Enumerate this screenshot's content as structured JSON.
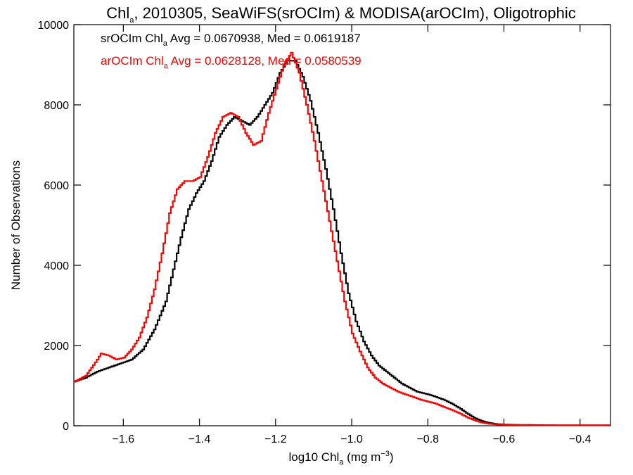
{
  "chart_data": {
    "type": "line",
    "title": {
      "pre": "Chl",
      "sub": "a",
      "post": ", 2010305, SeaWiFS(srOCIm) & MODISA(arOCIm), Oligotrophic"
    },
    "xlabel": {
      "pre": "log10 Chl",
      "sub": "a",
      "post": " (mg m",
      "sup": "−3",
      "end": ")"
    },
    "ylabel": "Number of Observations",
    "xlim": [
      -1.73,
      -0.32
    ],
    "ylim": [
      0,
      10000
    ],
    "xticks": [
      "−1.6",
      "−1.4",
      "−1.2",
      "−1.0",
      "−0.8",
      "−0.6",
      "−0.4"
    ],
    "xtick_values": [
      -1.6,
      -1.4,
      -1.2,
      -1.0,
      -0.8,
      -0.6,
      -0.4
    ],
    "yticks": [
      "0",
      "2000",
      "4000",
      "6000",
      "8000",
      "10000"
    ],
    "ytick_values": [
      0,
      2000,
      4000,
      6000,
      8000,
      10000
    ],
    "grid": false,
    "series": [
      {
        "color": "#000000",
        "stats": {
          "pre": "srOCIm Chl",
          "sub": "a",
          "post": " Avg = 0.0670938, Med = 0.0619187"
        },
        "x": [
          -1.73,
          -1.7,
          -1.67,
          -1.64,
          -1.61,
          -1.58,
          -1.55,
          -1.52,
          -1.49,
          -1.47,
          -1.45,
          -1.43,
          -1.41,
          -1.39,
          -1.37,
          -1.35,
          -1.33,
          -1.31,
          -1.29,
          -1.27,
          -1.25,
          -1.23,
          -1.21,
          -1.19,
          -1.17,
          -1.15,
          -1.13,
          -1.11,
          -1.09,
          -1.07,
          -1.05,
          -1.03,
          -1.01,
          -0.99,
          -0.97,
          -0.95,
          -0.93,
          -0.91,
          -0.89,
          -0.87,
          -0.85,
          -0.83,
          -0.8,
          -0.78,
          -0.76,
          -0.74,
          -0.72,
          -0.7,
          -0.68,
          -0.66,
          -0.64,
          -0.62,
          -0.6,
          -0.58,
          -0.55,
          -0.5,
          -0.45,
          -0.4,
          -0.35,
          -0.32
        ],
        "y": [
          1100,
          1200,
          1350,
          1450,
          1550,
          1650,
          1900,
          2400,
          3100,
          3900,
          4700,
          5400,
          5800,
          6100,
          6600,
          7200,
          7500,
          7700,
          7600,
          7500,
          7700,
          8000,
          8300,
          8800,
          9100,
          9100,
          8700,
          8100,
          7300,
          6400,
          5400,
          4300,
          3300,
          2600,
          2100,
          1750,
          1500,
          1350,
          1200,
          1050,
          950,
          850,
          780,
          720,
          650,
          560,
          450,
          320,
          200,
          120,
          70,
          40,
          30,
          25,
          20,
          15,
          12,
          10,
          10,
          10
        ]
      },
      {
        "color": "#ff0000",
        "stats": {
          "pre": "arOCIm Chl",
          "sub": "a",
          "post": " Avg = 0.0628128, Med = 0.0580539"
        },
        "x": [
          -1.73,
          -1.7,
          -1.67,
          -1.66,
          -1.64,
          -1.62,
          -1.6,
          -1.58,
          -1.56,
          -1.54,
          -1.52,
          -1.5,
          -1.48,
          -1.46,
          -1.44,
          -1.42,
          -1.4,
          -1.38,
          -1.36,
          -1.34,
          -1.32,
          -1.3,
          -1.28,
          -1.26,
          -1.24,
          -1.22,
          -1.2,
          -1.18,
          -1.16,
          -1.14,
          -1.12,
          -1.1,
          -1.08,
          -1.06,
          -1.04,
          -1.02,
          -1.0,
          -0.98,
          -0.96,
          -0.94,
          -0.92,
          -0.9,
          -0.88,
          -0.86,
          -0.84,
          -0.82,
          -0.8,
          -0.78,
          -0.76,
          -0.74,
          -0.72,
          -0.7,
          -0.68,
          -0.66,
          -0.64,
          -0.62,
          -0.6,
          -0.55,
          -0.5,
          -0.45,
          -0.4,
          -0.32
        ],
        "y": [
          1100,
          1250,
          1650,
          1800,
          1750,
          1650,
          1700,
          1900,
          2200,
          2700,
          3400,
          4300,
          5300,
          5900,
          6100,
          6100,
          6200,
          6700,
          7300,
          7700,
          7800,
          7700,
          7300,
          7000,
          7100,
          7800,
          8400,
          9000,
          9300,
          8800,
          8000,
          7100,
          6100,
          5100,
          4100,
          3100,
          2300,
          1850,
          1450,
          1200,
          1050,
          950,
          850,
          780,
          720,
          650,
          600,
          550,
          470,
          400,
          320,
          220,
          140,
          80,
          50,
          30,
          20,
          15,
          10,
          10,
          10,
          10
        ]
      }
    ]
  }
}
